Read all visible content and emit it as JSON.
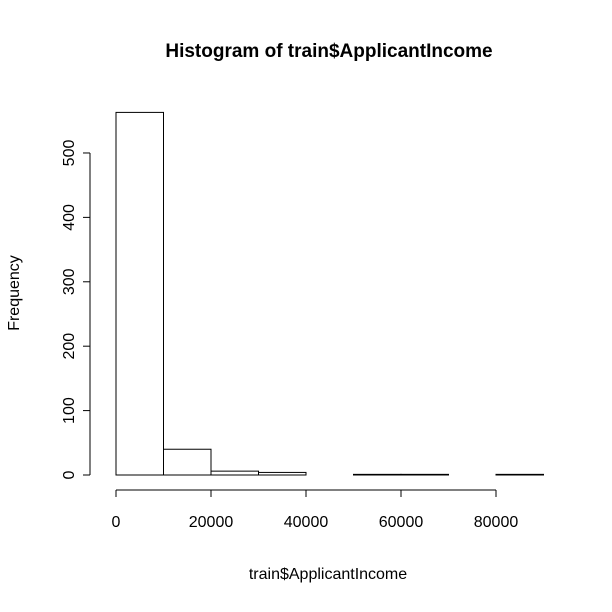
{
  "chart_data": {
    "type": "histogram",
    "title": "Histogram of train$ApplicantIncome",
    "x_label": "train$ApplicantIncome",
    "y_label": "Frequency",
    "bins": [
      0,
      10000,
      20000,
      30000,
      40000,
      50000,
      60000,
      70000,
      80000,
      90000
    ],
    "values": [
      563,
      40,
      6,
      4,
      0,
      1,
      1,
      0,
      1
    ],
    "color": "#ffffff",
    "xlim": [
      0,
      90000
    ],
    "xticks": [
      0,
      20000,
      40000,
      60000,
      80000
    ],
    "ylim": [
      0,
      563
    ],
    "yticks": [
      0,
      100,
      200,
      300,
      400,
      500
    ]
  }
}
